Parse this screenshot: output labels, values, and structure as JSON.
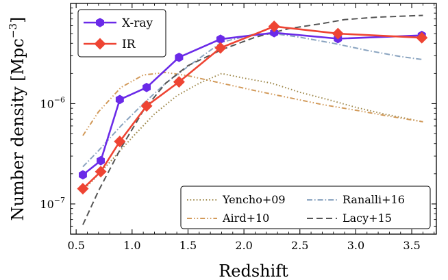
{
  "chart_data": {
    "type": "line",
    "xlabel": "Redshift",
    "ylabel": "Number density [Mpc",
    "ylabel_sup": "−3",
    "ylabel_close": "]",
    "y_scale": "log",
    "xlim": [
      0.45,
      3.72
    ],
    "ylim": [
      5e-08,
      1e-05
    ],
    "x_ticks": [
      0.5,
      1.0,
      1.5,
      2.0,
      2.5,
      3.0,
      3.5
    ],
    "x_tick_labels": [
      "0.5",
      "1.0",
      "1.5",
      "2.0",
      "2.5",
      "3.0",
      "3.5"
    ],
    "y_ticks": [
      1e-07,
      1e-06
    ],
    "y_tick_labels": [
      {
        "base": "10",
        "exp": "−7"
      },
      {
        "base": "10",
        "exp": "−6"
      }
    ],
    "grid": false,
    "legend_primary": "top-left",
    "legend_models": "bottom-right",
    "series": [
      {
        "name": "X-ray",
        "color": "#6a2ae8",
        "marker": "hexagon",
        "x": [
          0.56,
          0.72,
          0.89,
          1.13,
          1.42,
          1.79,
          2.27,
          2.84,
          3.59
        ],
        "y": [
          1.95e-07,
          2.7e-07,
          1.1e-06,
          1.45e-06,
          2.9e-06,
          4.4e-06,
          5.1e-06,
          4.45e-06,
          4.8e-06
        ]
      },
      {
        "name": "IR",
        "color": "#ee4433",
        "marker": "diamond",
        "x": [
          0.56,
          0.72,
          0.89,
          1.13,
          1.42,
          1.79,
          2.27,
          2.84,
          3.59
        ],
        "y": [
          1.42e-07,
          2.1e-07,
          4.2e-07,
          9.5e-07,
          1.65e-06,
          3.6e-06,
          5.9e-06,
          5e-06,
          4.55e-06
        ]
      }
    ],
    "model_lines": [
      {
        "name": "Yencho+09",
        "color": "#a08a4e",
        "style": "dotted",
        "x": [
          0.6,
          0.8,
          1.0,
          1.2,
          1.4,
          1.6,
          1.8,
          2.0,
          2.25,
          2.5,
          2.75,
          3.0,
          3.25,
          3.6
        ],
        "y": [
          1.5e-07,
          2.6e-07,
          4.6e-07,
          7.9e-07,
          1.2e-06,
          1.6e-06,
          2e-06,
          1.8e-06,
          1.6e-06,
          1.3e-06,
          1.1e-06,
          9.2e-07,
          7.9e-07,
          6.6e-07
        ]
      },
      {
        "name": "Aird+10",
        "color": "#d29a5a",
        "style": "dashdotdot",
        "x": [
          0.56,
          0.7,
          0.9,
          1.1,
          1.3,
          1.5,
          1.8,
          2.1,
          2.4,
          2.7,
          3.0,
          3.3,
          3.6
        ],
        "y": [
          4.8e-07,
          8.3e-07,
          1.45e-06,
          1.93e-06,
          2.05e-06,
          1.9e-06,
          1.6e-06,
          1.35e-06,
          1.15e-06,
          9.8e-07,
          8.6e-07,
          7.5e-07,
          6.6e-07
        ]
      },
      {
        "name": "Ranalli+16",
        "color": "#8aa4c0",
        "style": "dashdot",
        "x": [
          0.56,
          0.7,
          0.9,
          1.1,
          1.3,
          1.5,
          1.8,
          2.1,
          2.3,
          2.5,
          2.8,
          3.1,
          3.4,
          3.6
        ],
        "y": [
          2.35e-07,
          3.4e-07,
          6e-07,
          1e-06,
          1.6e-06,
          2.35e-06,
          4.1e-06,
          4.95e-06,
          4.95e-06,
          4.6e-06,
          4e-06,
          3.4e-06,
          2.95e-06,
          2.75e-06
        ]
      },
      {
        "name": "Lacy+15",
        "color": "#555555",
        "style": "dashed",
        "x": [
          0.56,
          0.7,
          0.9,
          1.1,
          1.3,
          1.5,
          1.8,
          2.1,
          2.4,
          2.7,
          2.9,
          3.2,
          3.6
        ],
        "y": [
          6.2e-08,
          1.35e-07,
          3.6e-07,
          8.5e-07,
          1.6e-06,
          2.4e-06,
          3.45e-06,
          4.6e-06,
          5.6e-06,
          6.3e-06,
          6.9e-06,
          7.3e-06,
          7.6e-06
        ]
      }
    ]
  }
}
